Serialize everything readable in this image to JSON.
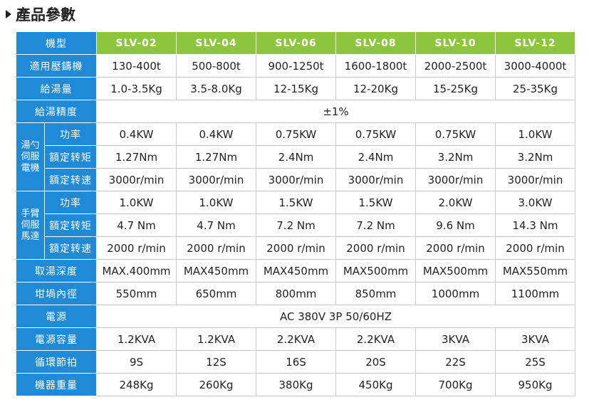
{
  "title": "產品參數",
  "table": {
    "header": [
      "機型",
      "SLV-02",
      "SLV-04",
      "SLV-06",
      "SLV-08",
      "SLV-10",
      "SLV-12"
    ],
    "rows": [
      {
        "label": "適用壓鑄機",
        "cells": [
          "130-400t",
          "500-800t",
          "900-1250t",
          "1600-1800t",
          "2000-2500t",
          "3000-4000t"
        ]
      },
      {
        "label": "給湯量",
        "cells": [
          "1.0-3.5Kg",
          "3.5-8.0Kg",
          "12-15Kg",
          "12-20Kg",
          "15-25Kg",
          "25-35Kg"
        ]
      },
      {
        "label": "給湯精度",
        "cells": [
          "±1%"
        ]
      },
      {
        "group": "湯勺伺服電機",
        "rows": [
          {
            "label": "功率",
            "cells": [
              "0.4KW",
              "0.4KW",
              "0.75KW",
              "0.75KW",
              "0.75KW",
              "1.0KW"
            ]
          },
          {
            "label": "額定转矩",
            "cells": [
              "1.27Nm",
              "1.27Nm",
              "2.4Nm",
              "2.4Nm",
              "3.2Nm",
              "3.2Nm"
            ]
          },
          {
            "label": "額定转速",
            "cells": [
              "3000r/min",
              "3000r/min",
              "3000r/min",
              "3000r/min",
              "3000r/min",
              "3000r/min"
            ]
          }
        ]
      },
      {
        "group": "手臂伺服馬達",
        "rows": [
          {
            "label": "功率",
            "cells": [
              "1.0KW",
              "1.0KW",
              "1.5KW",
              "1.5KW",
              "2.0KW",
              "3.0KW"
            ]
          },
          {
            "label": "額定转矩",
            "cells": [
              "4.7 Nm",
              "4.7 Nm",
              "7.2 Nm",
              "7.2 Nm",
              "9.6 Nm",
              "14.3 Nm"
            ]
          },
          {
            "label": "額定转速",
            "cells": [
              "2000 r/min",
              "2000 r/min",
              "2000 r/min",
              "2000 r/min",
              "2000 r/min",
              "2000 r/min"
            ]
          }
        ]
      },
      {
        "label": "取湯深度",
        "cells": [
          "MAX.400mm",
          "MAX450mm",
          "MAX450mm",
          "MAX500mm",
          "MAX500mm",
          "MAX550mm"
        ]
      },
      {
        "label": "坩堝內徑",
        "cells": [
          "550mm",
          "650mm",
          "800mm",
          "850mm",
          "1000mm",
          "1100mm"
        ]
      },
      {
        "label": "電源",
        "cells": [
          "AC 380V  3P  50/60HZ"
        ]
      },
      {
        "label": "電源容量",
        "cells": [
          "1.2KVA",
          "1.2KVA",
          "2.2KVA",
          "2.2KVA",
          "3KVA",
          "3KVA"
        ]
      },
      {
        "label": "循環節拍",
        "cells": [
          "9S",
          "12S",
          "16S",
          "20S",
          "22S",
          "25S"
        ]
      },
      {
        "label": "機器重量",
        "cells": [
          "248Kg",
          "260Kg",
          "380Kg",
          "450Kg",
          "700Kg",
          "950Kg"
        ]
      }
    ]
  }
}
